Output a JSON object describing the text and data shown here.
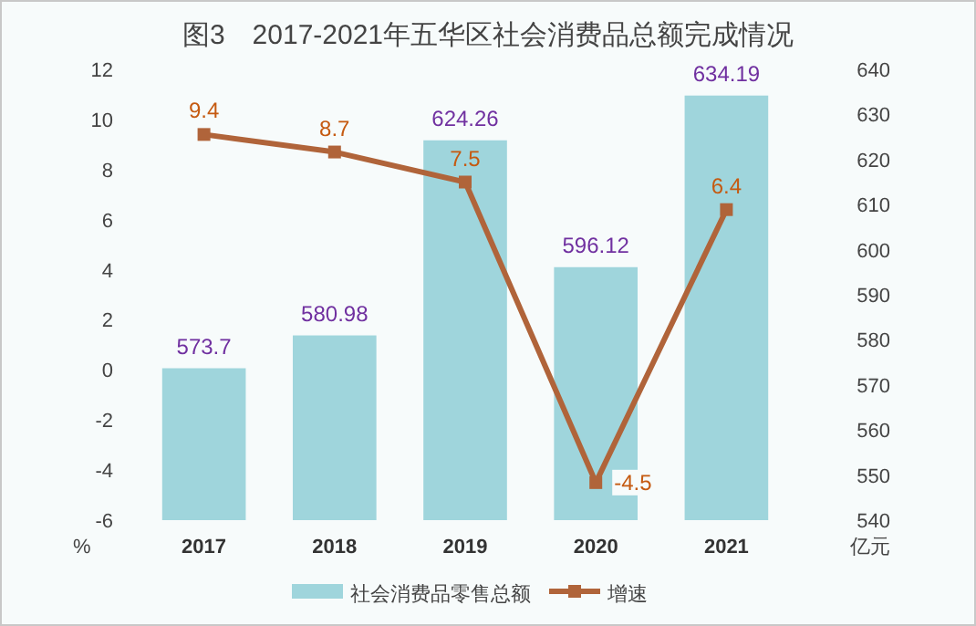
{
  "chart_data": {
    "type": "bar",
    "title": "图3　2017-2021年五华区社会消费品总额完成情况",
    "categories": [
      "2017",
      "2018",
      "2019",
      "2020",
      "2021"
    ],
    "series": [
      {
        "name": "社会消费品零售总额",
        "axis": "y2",
        "color": "#9fd5dc",
        "values": [
          573.7,
          580.98,
          624.26,
          596.12,
          634.19
        ]
      },
      {
        "name": "增速",
        "type": "line",
        "color": "#b0643a",
        "marker": "square",
        "values": [
          9.4,
          8.7,
          7.5,
          -4.5,
          6.4
        ]
      }
    ],
    "ylim": [
      -6,
      12
    ],
    "yticks": [
      -6,
      -4,
      -2,
      0,
      2,
      4,
      6,
      8,
      10,
      12
    ],
    "y2lim": [
      540,
      640
    ],
    "y2ticks": [
      540,
      550,
      560,
      570,
      580,
      590,
      600,
      610,
      620,
      630,
      640
    ],
    "ylabel": "%",
    "y2label": "亿元",
    "data_labels": true,
    "legend": "bottom"
  }
}
